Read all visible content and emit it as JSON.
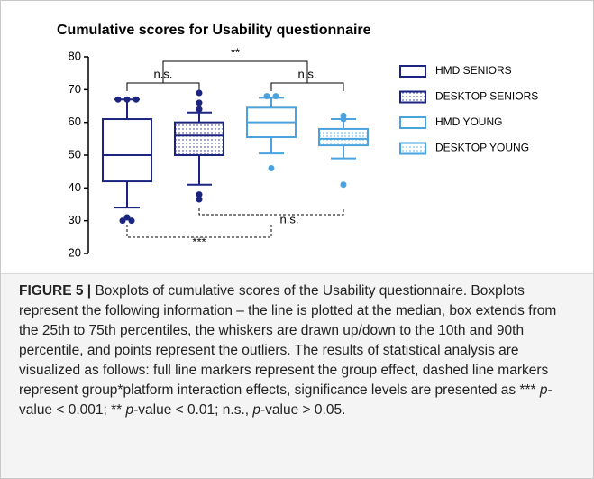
{
  "chart_data": {
    "type": "box",
    "title": "Cumulative scores for Usability questionnaire",
    "ylim": [
      20,
      80
    ],
    "yticks": [
      20,
      30,
      40,
      50,
      60,
      70,
      80
    ],
    "series": [
      {
        "name": "HMD SENIORS",
        "color": "#1b2580",
        "pattern": "solid",
        "whisker_low": 34,
        "q1": 42,
        "median": 50,
        "q3": 61,
        "whisker_high": 67,
        "outliers": [
          67,
          67,
          67,
          31,
          30,
          30
        ]
      },
      {
        "name": "DESKTOP SENIORS",
        "color": "#1b2580",
        "pattern": "dotted",
        "whisker_low": 41,
        "q1": 50,
        "median": 56,
        "q3": 60,
        "whisker_high": 63,
        "outliers": [
          69,
          66,
          64,
          38,
          36.5
        ]
      },
      {
        "name": "HMD YOUNG",
        "color": "#4aa3df",
        "pattern": "solid",
        "whisker_low": 50.5,
        "q1": 55.5,
        "median": 60,
        "q3": 64.5,
        "whisker_high": 67.5,
        "outliers": [
          68,
          68,
          46
        ]
      },
      {
        "name": "DESKTOP YOUNG",
        "color": "#4aa3df",
        "pattern": "dotted",
        "whisker_low": 49,
        "q1": 53,
        "median": 55,
        "q3": 58,
        "whisker_high": 61,
        "outliers": [
          62,
          61,
          41
        ]
      }
    ],
    "annotations": [
      "n.s.",
      "n.s.",
      "**",
      "n.s.",
      "***"
    ]
  },
  "caption": {
    "label": "FIGURE 5 |",
    "parts": [
      " Boxplots of cumulative scores of the Usability questionnaire. Boxplots represent the following information – the line is plotted at the median, box extends from the 25th to 75th percentiles, the whiskers are drawn up/down to the 10th and 90th percentile, and points represent the outliers. The results of statistical analysis are visualized as follows: full line markers represent the group effect, dashed line markers represent group*platform interaction effects, significance levels are presented as *** ",
      "p",
      "-value < 0.001; ** ",
      "p",
      "-value < 0.01; n.s., ",
      "p",
      "-value > 0.05."
    ]
  }
}
